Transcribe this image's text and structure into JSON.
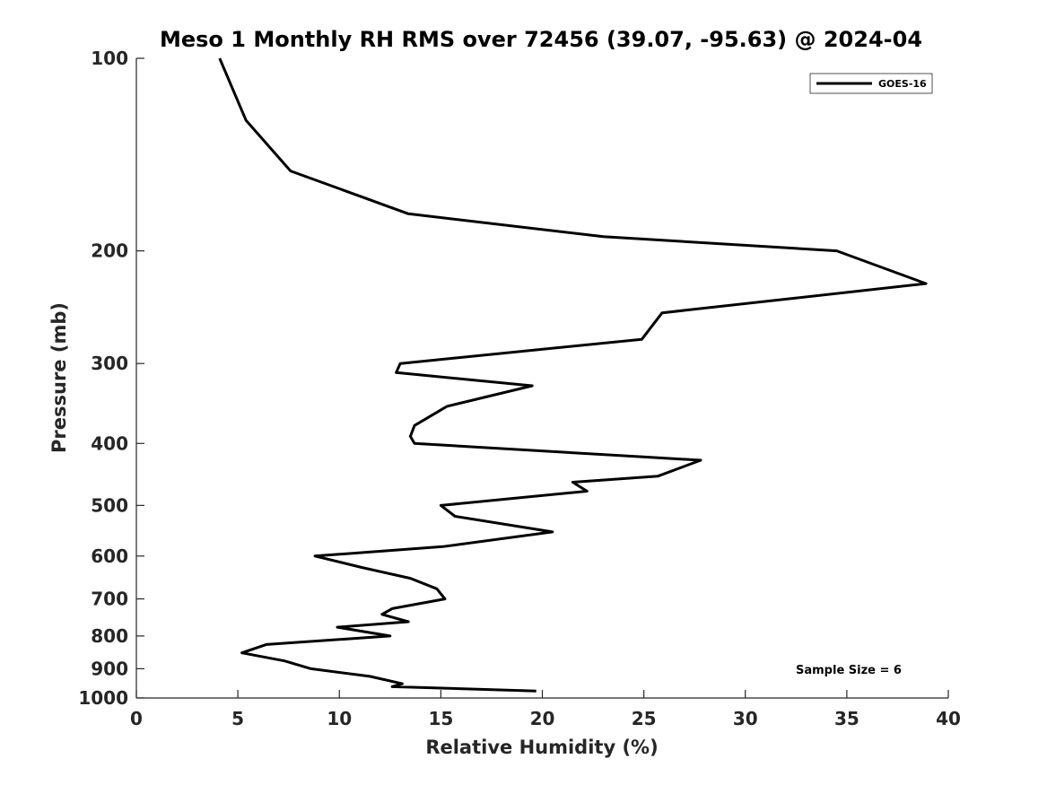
{
  "chart_data": {
    "type": "line",
    "title": "Meso 1 Monthly RH RMS over 72456 (39.07, -95.63) @ 2024-04",
    "xlabel": "Relative Humidity (%)",
    "ylabel": "Pressure (mb)",
    "xlim": [
      0,
      40
    ],
    "ylim": [
      100,
      1000
    ],
    "y_scale": "log",
    "y_direction": "reversed",
    "xticks": [
      0,
      5,
      10,
      15,
      20,
      25,
      30,
      35,
      40
    ],
    "yticks": [
      100,
      200,
      300,
      400,
      500,
      600,
      700,
      800,
      900,
      1000
    ],
    "grid": false,
    "legend_position": "top-right",
    "line_color": "#000000",
    "series": [
      {
        "name": "GOES-16",
        "points": [
          [
            4.1,
            100
          ],
          [
            5.4,
            125
          ],
          [
            7.6,
            150
          ],
          [
            13.4,
            175
          ],
          [
            23.0,
            190
          ],
          [
            34.5,
            200
          ],
          [
            38.9,
            225
          ],
          [
            25.9,
            250
          ],
          [
            24.9,
            275
          ],
          [
            13.0,
            300
          ],
          [
            12.8,
            310
          ],
          [
            19.5,
            325
          ],
          [
            15.3,
            350
          ],
          [
            13.7,
            375
          ],
          [
            13.5,
            390
          ],
          [
            13.7,
            400
          ],
          [
            27.8,
            425
          ],
          [
            25.7,
            450
          ],
          [
            21.5,
            460
          ],
          [
            22.2,
            475
          ],
          [
            15.0,
            500
          ],
          [
            15.7,
            520
          ],
          [
            20.5,
            550
          ],
          [
            15.1,
            580
          ],
          [
            8.8,
            600
          ],
          [
            11.1,
            625
          ],
          [
            13.5,
            650
          ],
          [
            14.8,
            675
          ],
          [
            15.2,
            700
          ],
          [
            12.6,
            725
          ],
          [
            12.1,
            740
          ],
          [
            13.4,
            760
          ],
          [
            9.9,
            775
          ],
          [
            12.5,
            800
          ],
          [
            6.4,
            825
          ],
          [
            5.2,
            850
          ],
          [
            7.3,
            875
          ],
          [
            8.6,
            900
          ],
          [
            11.5,
            925
          ],
          [
            13.1,
            950
          ],
          [
            12.6,
            960
          ],
          [
            19.7,
            975
          ]
        ]
      }
    ],
    "annotations": [
      "Sample Size = 6"
    ]
  }
}
